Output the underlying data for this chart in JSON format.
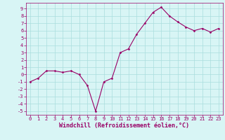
{
  "x": [
    0,
    1,
    2,
    3,
    4,
    5,
    6,
    7,
    8,
    9,
    10,
    11,
    12,
    13,
    14,
    15,
    16,
    17,
    18,
    19,
    20,
    21,
    22,
    23
  ],
  "y": [
    -1.0,
    -0.5,
    0.5,
    0.5,
    0.3,
    0.5,
    0.0,
    -1.5,
    -5.0,
    -1.0,
    -0.5,
    3.0,
    3.5,
    5.5,
    7.0,
    8.5,
    9.2,
    8.0,
    7.2,
    6.5,
    6.0,
    6.3,
    5.8,
    6.3
  ],
  "line_color": "#990066",
  "marker": "D",
  "marker_size": 1.5,
  "line_width": 0.8,
  "bg_color": "#d8f5f5",
  "grid_color": "#aadddd",
  "xlabel": "Windchill (Refroidissement éolien,°C)",
  "xlabel_color": "#990066",
  "xlabel_fontsize": 6,
  "tick_color": "#990066",
  "tick_fontsize": 5,
  "ylim": [
    -5.5,
    9.8
  ],
  "xlim": [
    -0.5,
    23.5
  ],
  "yticks": [
    -5,
    -4,
    -3,
    -2,
    -1,
    0,
    1,
    2,
    3,
    4,
    5,
    6,
    7,
    8,
    9
  ],
  "xticks": [
    0,
    1,
    2,
    3,
    4,
    5,
    6,
    7,
    8,
    9,
    10,
    11,
    12,
    13,
    14,
    15,
    16,
    17,
    18,
    19,
    20,
    21,
    22,
    23
  ],
  "xtick_labels": [
    "0",
    "1",
    "2",
    "3",
    "4",
    "5",
    "6",
    "7",
    "8",
    "9",
    "10",
    "11",
    "12",
    "13",
    "14",
    "15",
    "16",
    "17",
    "18",
    "19",
    "20",
    "21",
    "22",
    "23"
  ]
}
